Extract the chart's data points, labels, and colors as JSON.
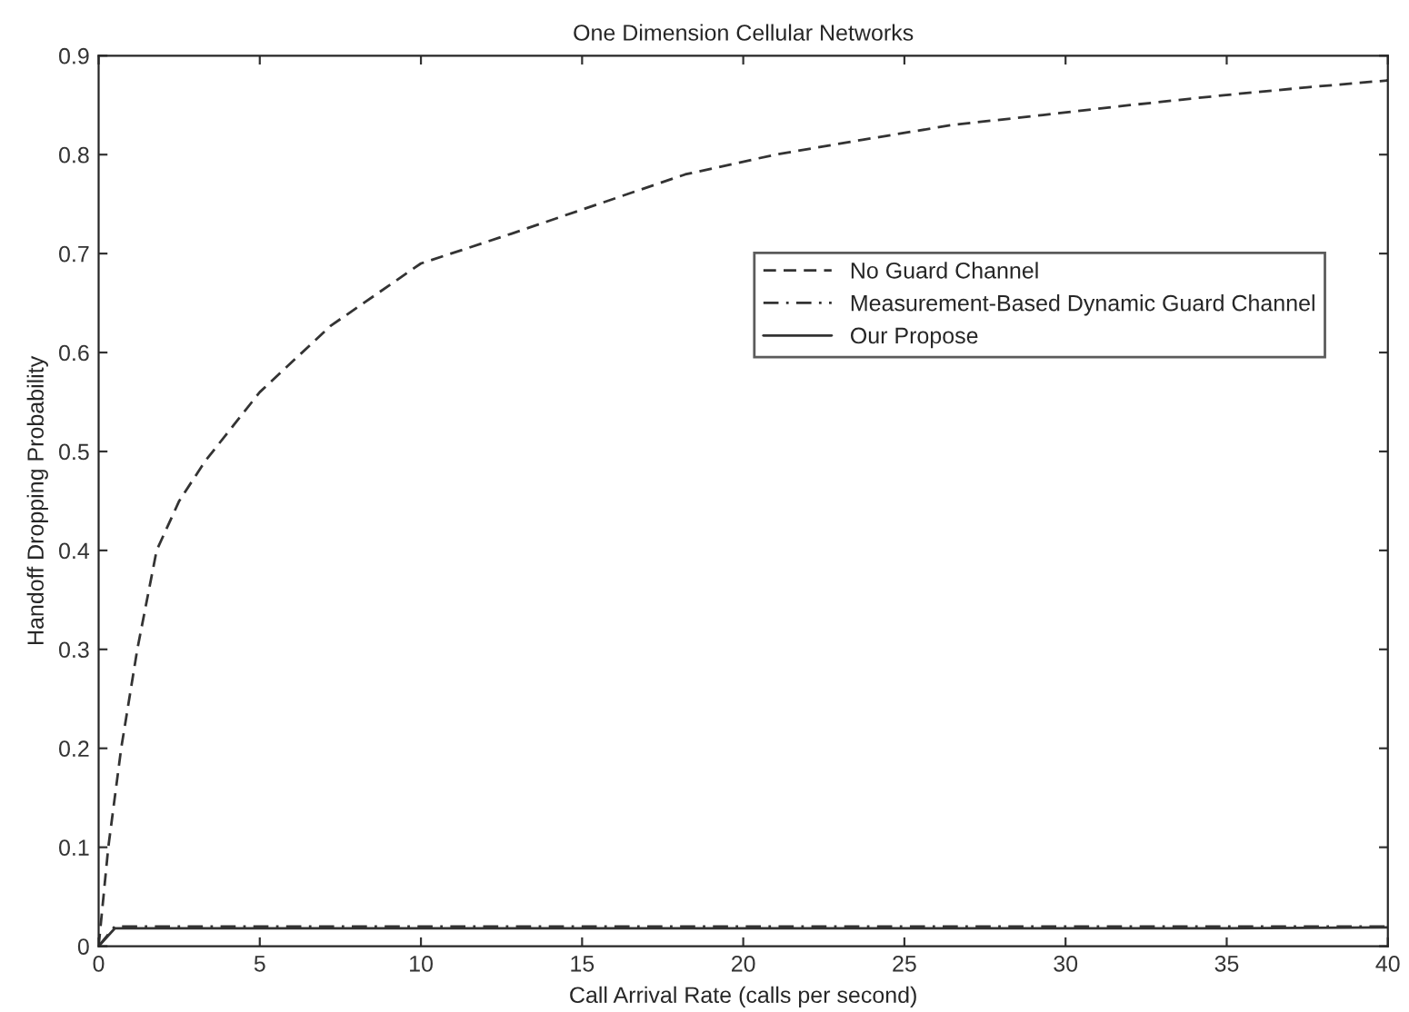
{
  "chart_data": {
    "type": "line",
    "title": "One Dimension Cellular Networks",
    "xlabel": "Call Arrival Rate (calls per second)",
    "ylabel": "Handoff Dropping Probability",
    "xlim": [
      0,
      40
    ],
    "xticks": [
      0,
      5,
      10,
      15,
      20,
      25,
      30,
      35,
      40
    ],
    "ylim": [
      0,
      0.9
    ],
    "yticks": [
      0,
      0.1,
      0.2,
      0.3,
      0.4,
      0.5,
      0.6,
      0.7,
      0.8,
      0.9
    ],
    "grid": false,
    "legend": "right",
    "marker": "none",
    "series": [
      {
        "name": "No Guard Channel",
        "color": "#333333",
        "line_style": "dashed",
        "x": [
          0,
          0.3,
          0.7,
          1.2,
          1.8,
          2.5,
          3.3,
          5,
          7.2,
          10,
          12.8,
          15.5,
          18.2,
          21,
          23.7,
          26.5,
          29.3,
          32,
          34.9,
          37.5,
          40
        ],
        "values": [
          0,
          0.1,
          0.2,
          0.3,
          0.4,
          0.45,
          0.49,
          0.56,
          0.627,
          0.69,
          0.72,
          0.75,
          0.78,
          0.8,
          0.815,
          0.83,
          0.84,
          0.85,
          0.86,
          0.868,
          0.875
        ]
      },
      {
        "name": "Measurement-Based Dynamic Guard Channel",
        "color": "#333333",
        "line_style": "dashdot",
        "x": [
          0,
          0.5,
          5,
          10,
          15,
          20,
          25,
          30,
          35,
          40
        ],
        "values": [
          0,
          0.02,
          0.02,
          0.02,
          0.02,
          0.02,
          0.02,
          0.02,
          0.02,
          0.02
        ]
      },
      {
        "name": "Our Propose",
        "color": "#333333",
        "line_style": "solid",
        "x": [
          0,
          0.5,
          5,
          10,
          15,
          20,
          25,
          30,
          35,
          40
        ],
        "values": [
          0,
          0.018,
          0.018,
          0.018,
          0.018,
          0.018,
          0.018,
          0.018,
          0.018,
          0.019
        ]
      }
    ]
  }
}
